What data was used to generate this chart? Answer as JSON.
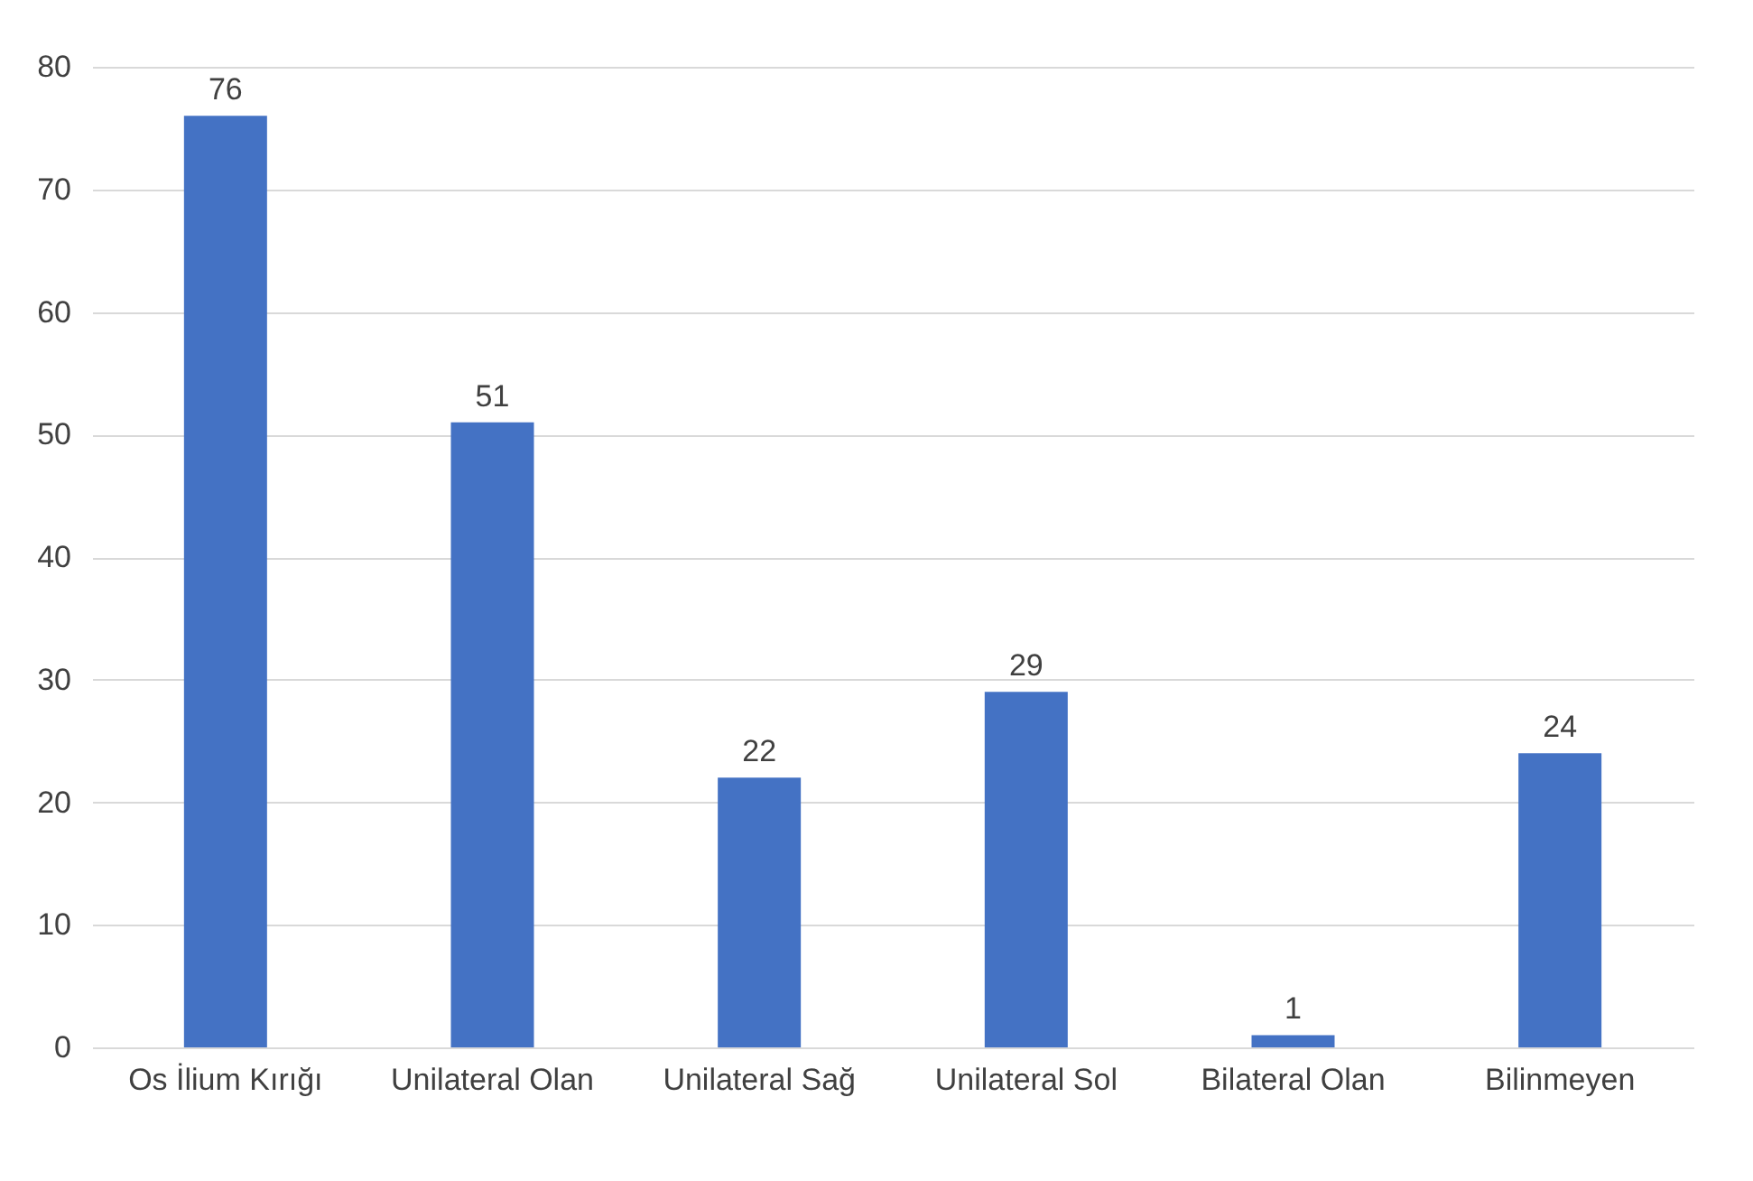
{
  "chart_data": {
    "type": "bar",
    "categories": [
      "Os İlium Kırığı",
      "Unilateral Olan",
      "Unilateral Sağ",
      "Unilateral Sol",
      "Bilateral Olan",
      "Bilinmeyen"
    ],
    "values": [
      76,
      51,
      22,
      29,
      1,
      24
    ],
    "color": "#4472c4",
    "ylim": [
      0,
      80
    ],
    "yticks": [
      0,
      10,
      20,
      30,
      40,
      50,
      60,
      70,
      80
    ],
    "grid": "y",
    "data_labels": true
  }
}
